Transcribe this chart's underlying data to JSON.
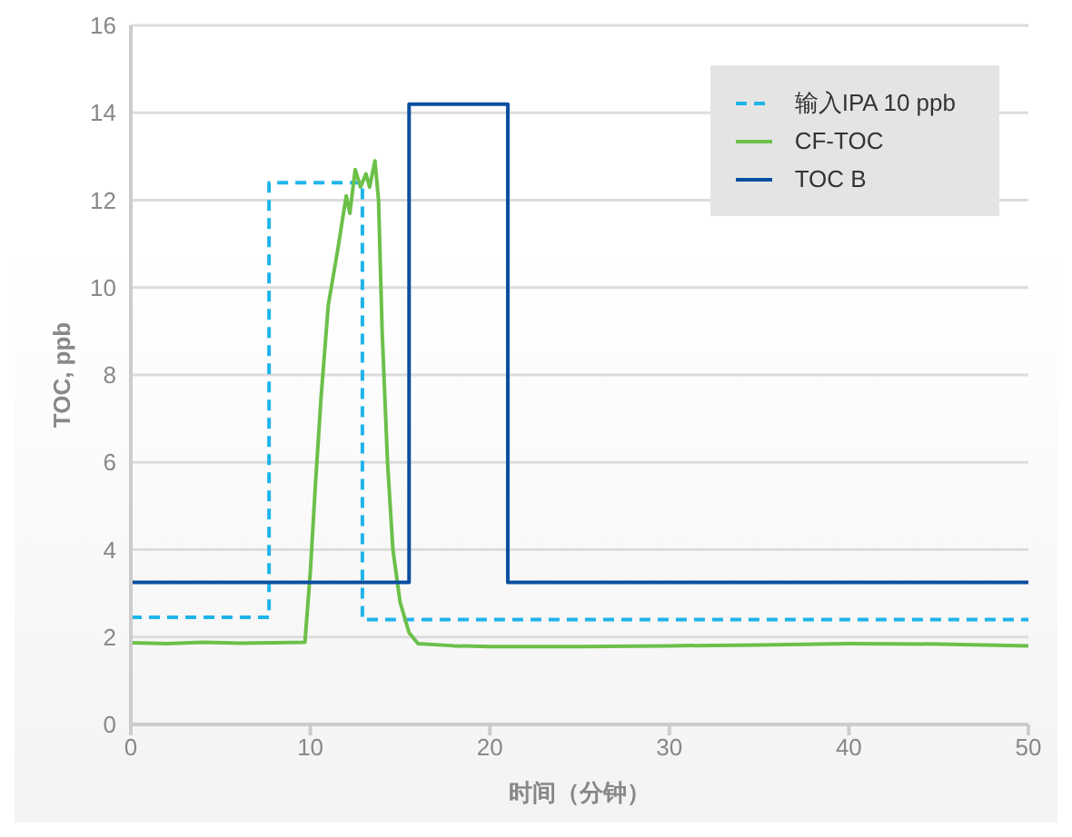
{
  "chart_data": {
    "type": "line",
    "xlabel": "时间（分钟）",
    "ylabel": "TOC, ppb",
    "xlim": [
      0,
      50
    ],
    "xticks": [
      0,
      10,
      20,
      30,
      40,
      50
    ],
    "ylim": [
      0,
      16
    ],
    "yticks": [
      0,
      2,
      4,
      6,
      8,
      10,
      12,
      14,
      16
    ],
    "grid": "y",
    "legend": "top right",
    "marker": "none",
    "series": [
      {
        "name": "输入IPA 10 ppb",
        "color": "#1eb4ea",
        "line_style": "dashed",
        "x": [
          0,
          7.7,
          7.7,
          12.9,
          12.9,
          50
        ],
        "values": [
          2.45,
          2.45,
          12.4,
          12.4,
          2.4,
          2.4
        ]
      },
      {
        "name": "CF-TOC",
        "color": "#6cc04a",
        "line_style": "solid",
        "x": [
          0,
          2,
          4,
          6,
          8,
          9.7,
          10,
          10.3,
          10.6,
          11,
          11.5,
          12,
          12.2,
          12.5,
          12.8,
          13.1,
          13.3,
          13.6,
          13.8,
          14,
          14.3,
          14.6,
          15,
          15.5,
          16,
          18,
          20,
          25,
          30,
          35,
          40,
          45,
          50
        ],
        "values": [
          1.87,
          1.85,
          1.88,
          1.86,
          1.87,
          1.88,
          3.5,
          5.6,
          7.5,
          9.6,
          10.8,
          12.1,
          11.7,
          12.7,
          12.3,
          12.6,
          12.3,
          12.9,
          12,
          9,
          6,
          4,
          2.8,
          2.1,
          1.85,
          1.8,
          1.78,
          1.78,
          1.8,
          1.82,
          1.85,
          1.84,
          1.8
        ]
      },
      {
        "name": "TOC B",
        "color": "#0a4fa0",
        "line_style": "solid",
        "x": [
          0,
          15.5,
          15.5,
          21,
          21,
          50
        ],
        "values": [
          3.25,
          3.25,
          14.2,
          14.2,
          3.25,
          3.25
        ]
      }
    ]
  }
}
